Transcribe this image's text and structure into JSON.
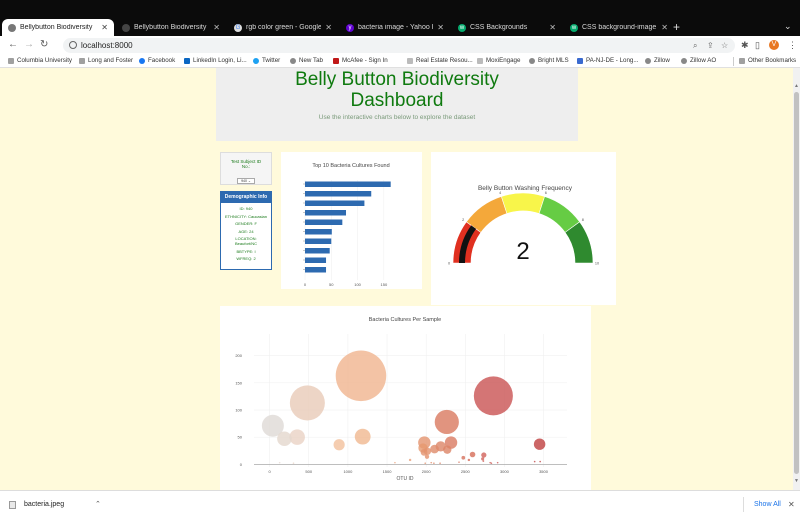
{
  "browser": {
    "tabs": [
      {
        "title": "Bellybutton Biodiversity",
        "active": true,
        "icon": "globe-icon"
      },
      {
        "title": "Bellybutton Biodiversity",
        "active": false,
        "icon": "github-icon"
      },
      {
        "title": "rgb color green - Google Sear",
        "active": false,
        "icon": "google-icon"
      },
      {
        "title": "bacteria image - Yahoo Image",
        "active": false,
        "icon": "yahoo-icon"
      },
      {
        "title": "CSS Backgrounds",
        "active": false,
        "icon": "w3schools-icon"
      },
      {
        "title": "CSS background-image Prope",
        "active": false,
        "icon": "w3schools-icon"
      }
    ],
    "new_tab": "+",
    "url": "localhost:8000",
    "profile_initial": "V",
    "bookmarks": [
      "Columbia University",
      "Long and Foster",
      "Facebook",
      "LinkedIn Login, Li...",
      "Twitter",
      "New Tab",
      "McAfee - Sign In",
      "Real Estate Resou...",
      "MoxiEngage",
      "Bright MLS",
      "PA-NJ-DE - Long...",
      "Zillow",
      "Zillow AO"
    ],
    "other_bookmarks": "Other Bookmarks"
  },
  "header": {
    "title_line1": "Belly Button Biodiversity",
    "title_line2": "Dashboard",
    "subtitle": "Use the interactive charts below to explore the dataset"
  },
  "selector": {
    "label_line1": "Test Subject ID",
    "label_line2": "No.:",
    "value": "940"
  },
  "demographics": {
    "title": "Demographic Info",
    "lines": [
      "ID: 940",
      "ETHNICITY: Caucasian",
      "GENDER: F",
      "AGE: 24",
      "LOCATION:",
      "Beaufort/NC",
      "BBTYPE: I",
      "WFREQ: 2"
    ]
  },
  "downloads": {
    "file": "bacteria.jpeg",
    "show_all": "Show All"
  },
  "colors": {
    "page_bg": "#fffadb",
    "title_green": "#0f7a0f",
    "bar_blue": "#2d6ab0"
  },
  "chart_data": [
    {
      "type": "bar",
      "orientation": "horizontal",
      "title": "Top 10 Bacteria Cultures Found",
      "values": [
        163,
        126,
        113,
        78,
        71,
        51,
        50,
        47,
        40,
        40
      ],
      "xlim": [
        0,
        175
      ],
      "xticks": [
        "0",
        "50",
        "100",
        "150"
      ]
    },
    {
      "type": "gauge",
      "title": "Belly Button Washing Frequency",
      "value": 2,
      "range": [
        0,
        10
      ],
      "ticks": [
        "0",
        "2",
        "4",
        "6",
        "8",
        "10"
      ],
      "bands": [
        {
          "from": 0,
          "to": 2,
          "color": "#e03020"
        },
        {
          "from": 2,
          "to": 4,
          "color": "#f4a83a"
        },
        {
          "from": 4,
          "to": 6,
          "color": "#f8f54a"
        },
        {
          "from": 6,
          "to": 8,
          "color": "#66cc44"
        },
        {
          "from": 8,
          "to": 10,
          "color": "#2f8a2f"
        }
      ]
    },
    {
      "type": "scatter",
      "title": "Bacteria Cultures Per Sample",
      "xlabel": "OTU ID",
      "xlim": [
        -200,
        3800
      ],
      "ylim": [
        -5,
        240
      ],
      "xticks": [
        "0",
        "500",
        "1000",
        "1500",
        "2000",
        "2500",
        "3000",
        "3500"
      ],
      "yticks": [
        "0",
        "50",
        "100",
        "150",
        "200"
      ],
      "points": [
        {
          "x": 1167,
          "y": 163,
          "size": 163,
          "color": "#f0b48e"
        },
        {
          "x": 2859,
          "y": 126,
          "size": 126,
          "color": "#c95352"
        },
        {
          "x": 482,
          "y": 113,
          "size": 113,
          "color": "#e8cbb8"
        },
        {
          "x": 2264,
          "y": 78,
          "size": 78,
          "color": "#d9795f"
        },
        {
          "x": 41,
          "y": 71,
          "size": 71,
          "color": "#dedad6"
        },
        {
          "x": 1189,
          "y": 51,
          "size": 51,
          "color": "#f0b890"
        },
        {
          "x": 352,
          "y": 50,
          "size": 50,
          "color": "#ead2c4"
        },
        {
          "x": 189,
          "y": 47,
          "size": 47,
          "color": "#e4d7cd"
        },
        {
          "x": 2318,
          "y": 40,
          "size": 40,
          "color": "#da7b62"
        },
        {
          "x": 1977,
          "y": 40,
          "size": 40,
          "color": "#e4946f"
        },
        {
          "x": 3450,
          "y": 37,
          "size": 37,
          "color": "#bf4040"
        },
        {
          "x": 888,
          "y": 36,
          "size": 36,
          "color": "#f3c09c"
        },
        {
          "x": 2186,
          "y": 33,
          "size": 33,
          "color": "#dc8466"
        },
        {
          "x": 1960,
          "y": 30,
          "size": 30,
          "color": "#e6986f"
        },
        {
          "x": 2107,
          "y": 28,
          "size": 28,
          "color": "#df8b6a"
        },
        {
          "x": 2270,
          "y": 27,
          "size": 27,
          "color": "#dc8365"
        },
        {
          "x": 2016,
          "y": 24,
          "size": 24,
          "color": "#e3926e"
        },
        {
          "x": 1973,
          "y": 22,
          "size": 22,
          "color": "#e4946f"
        },
        {
          "x": 2593,
          "y": 18,
          "size": 18,
          "color": "#d66d58"
        },
        {
          "x": 2737,
          "y": 17,
          "size": 17,
          "color": "#d1625a"
        },
        {
          "x": 2011,
          "y": 14,
          "size": 14,
          "color": "#e3926e"
        },
        {
          "x": 2475,
          "y": 12,
          "size": 12,
          "color": "#d6705c"
        },
        {
          "x": 2722,
          "y": 10,
          "size": 10,
          "color": "#d1625a"
        },
        {
          "x": 1795,
          "y": 8,
          "size": 8,
          "color": "#e8a07a"
        },
        {
          "x": 2546,
          "y": 8,
          "size": 8,
          "color": "#d56a58"
        },
        {
          "x": 2731,
          "y": 6,
          "size": 6,
          "color": "#d1625a"
        },
        {
          "x": 3387,
          "y": 5,
          "size": 5,
          "color": "#c04545"
        },
        {
          "x": 3457,
          "y": 5,
          "size": 5,
          "color": "#be4040"
        },
        {
          "x": 1601,
          "y": 3,
          "size": 3,
          "color": "#eca985"
        },
        {
          "x": 2065,
          "y": 3,
          "size": 3,
          "color": "#e18f6c"
        },
        {
          "x": 2420,
          "y": 4,
          "size": 4,
          "color": "#d8745e"
        },
        {
          "x": 2818,
          "y": 3,
          "size": 3,
          "color": "#cf5e58"
        },
        {
          "x": 2914,
          "y": 3,
          "size": 3,
          "color": "#cc5858"
        },
        {
          "x": 128,
          "y": 3,
          "size": 3,
          "color": "#e6dad3"
        },
        {
          "x": 305,
          "y": 2,
          "size": 2,
          "color": "#e8d4c8"
        },
        {
          "x": 2099,
          "y": 2,
          "size": 2,
          "color": "#df8b6a"
        },
        {
          "x": 2834,
          "y": 2,
          "size": 2,
          "color": "#ce5c58"
        },
        {
          "x": 2178,
          "y": 2,
          "size": 2,
          "color": "#dd8567"
        },
        {
          "x": 1988,
          "y": 2,
          "size": 2,
          "color": "#e4946f"
        }
      ]
    }
  ]
}
